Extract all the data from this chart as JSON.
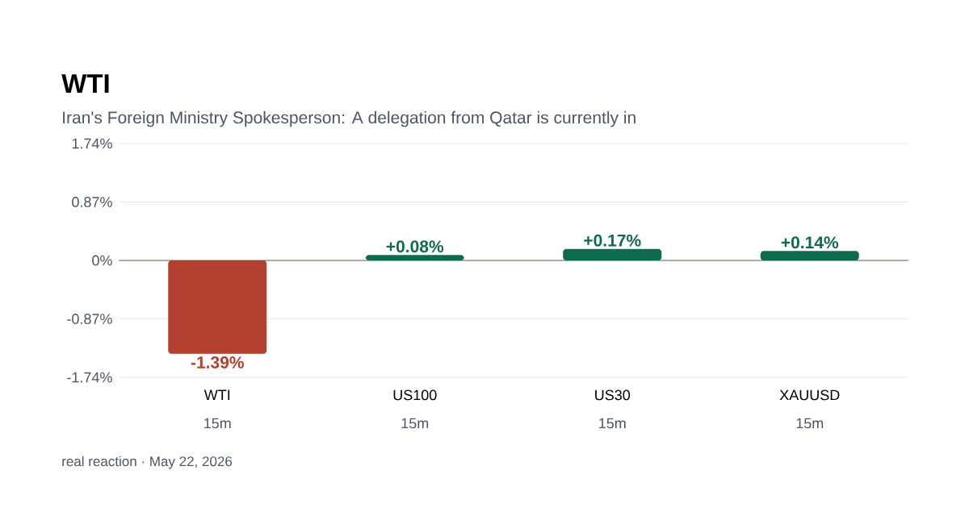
{
  "chart_data": {
    "type": "bar",
    "title": "WTI",
    "subtitle": "Iran's Foreign Ministry Spokesperson: A delegation from Qatar is currently in",
    "categories": [
      "WTI",
      "US100",
      "US30",
      "XAUUSD"
    ],
    "values": [
      -1.39,
      0.08,
      0.17,
      0.14
    ],
    "colors": [
      "#b3402f",
      "#0f6b4f",
      "#0f6b4f",
      "#0f6b4f"
    ],
    "value_labels": [
      "-1.39%",
      "+0.08%",
      "+0.17%",
      "+0.14%"
    ],
    "ylim": [
      -1.74,
      1.74
    ],
    "yticks": [
      {
        "value": -1.74,
        "label": "-1.74%"
      },
      {
        "value": -0.87,
        "label": "-0.87%"
      },
      {
        "value": 0,
        "label": "0%"
      },
      {
        "value": 0.87,
        "label": "0.87%"
      },
      {
        "value": 1.74,
        "label": "1.74%"
      }
    ],
    "grid": "y",
    "annotations": [
      "15m",
      "15m",
      "15m",
      "15m",
      "real reaction · May 22, 2026"
    ]
  }
}
